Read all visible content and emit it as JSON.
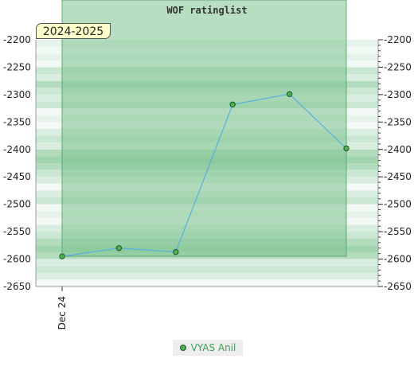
{
  "chart_data": {
    "type": "line",
    "title": "WOF ratinglist",
    "badge": "2024-2025",
    "x": [
      "Dec 24",
      "",
      "",
      "",
      "",
      ""
    ],
    "x_tick_labels": [
      "Dec 24"
    ],
    "series": [
      {
        "name": "VYAS Anil",
        "values": [
          -2595,
          -2580,
          -2587,
          -2318,
          -2299,
          -2398
        ]
      }
    ],
    "ylim": [
      -2650,
      -2200
    ],
    "y_ticks": [
      -2200,
      -2250,
      -2300,
      -2350,
      -2400,
      -2450,
      -2500,
      -2550,
      -2600,
      -2650
    ],
    "y_tick_labels": [
      "-2200",
      "-2250",
      "-2300",
      "-2350",
      "-2400",
      "-2450",
      "-2500",
      "-2550",
      "-2600",
      "-2650"
    ],
    "legend_position": "bottom-center",
    "colors": {
      "line": "#5aaee0",
      "marker": "#4caf50",
      "highlight": "#7cc38e",
      "band_dark": "#a8d8b4",
      "band_light": "#eaf6ee"
    }
  }
}
